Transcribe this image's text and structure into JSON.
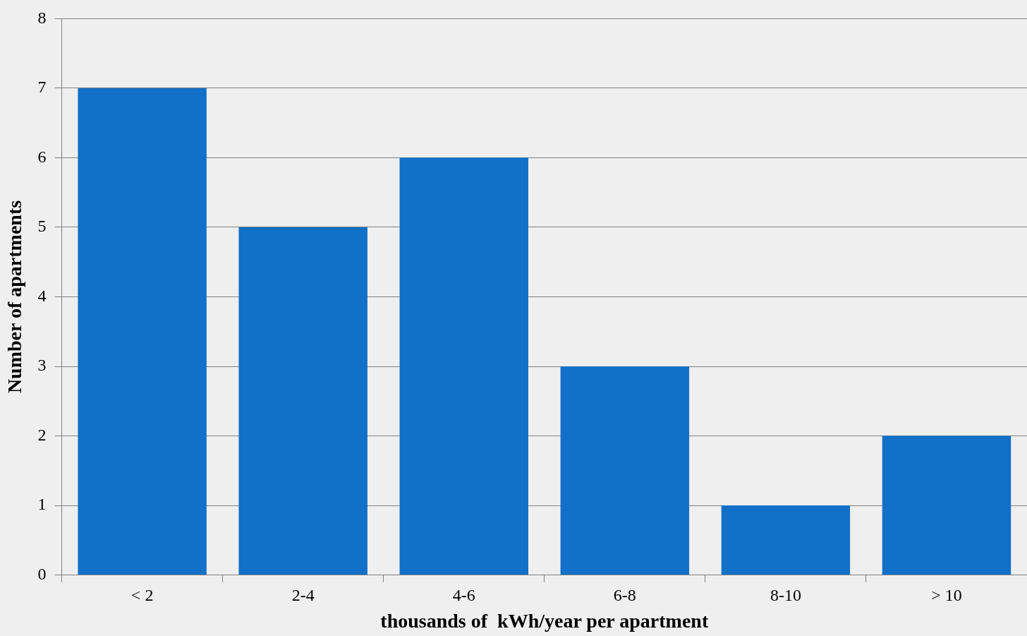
{
  "chart_data": {
    "type": "bar",
    "xlabel": "thousands of  kWh/year per apartment",
    "ylabel": "Number of apartments",
    "categories": [
      "< 2",
      "2-4",
      "4-6",
      "6-8",
      "8-10",
      "> 10"
    ],
    "values": [
      7,
      5,
      6,
      3,
      1,
      2
    ],
    "color": "#1170c8",
    "ylim": [
      0,
      8
    ],
    "yticks": [
      0,
      1,
      2,
      3,
      4,
      5,
      6,
      7,
      8
    ],
    "grid": "y"
  }
}
